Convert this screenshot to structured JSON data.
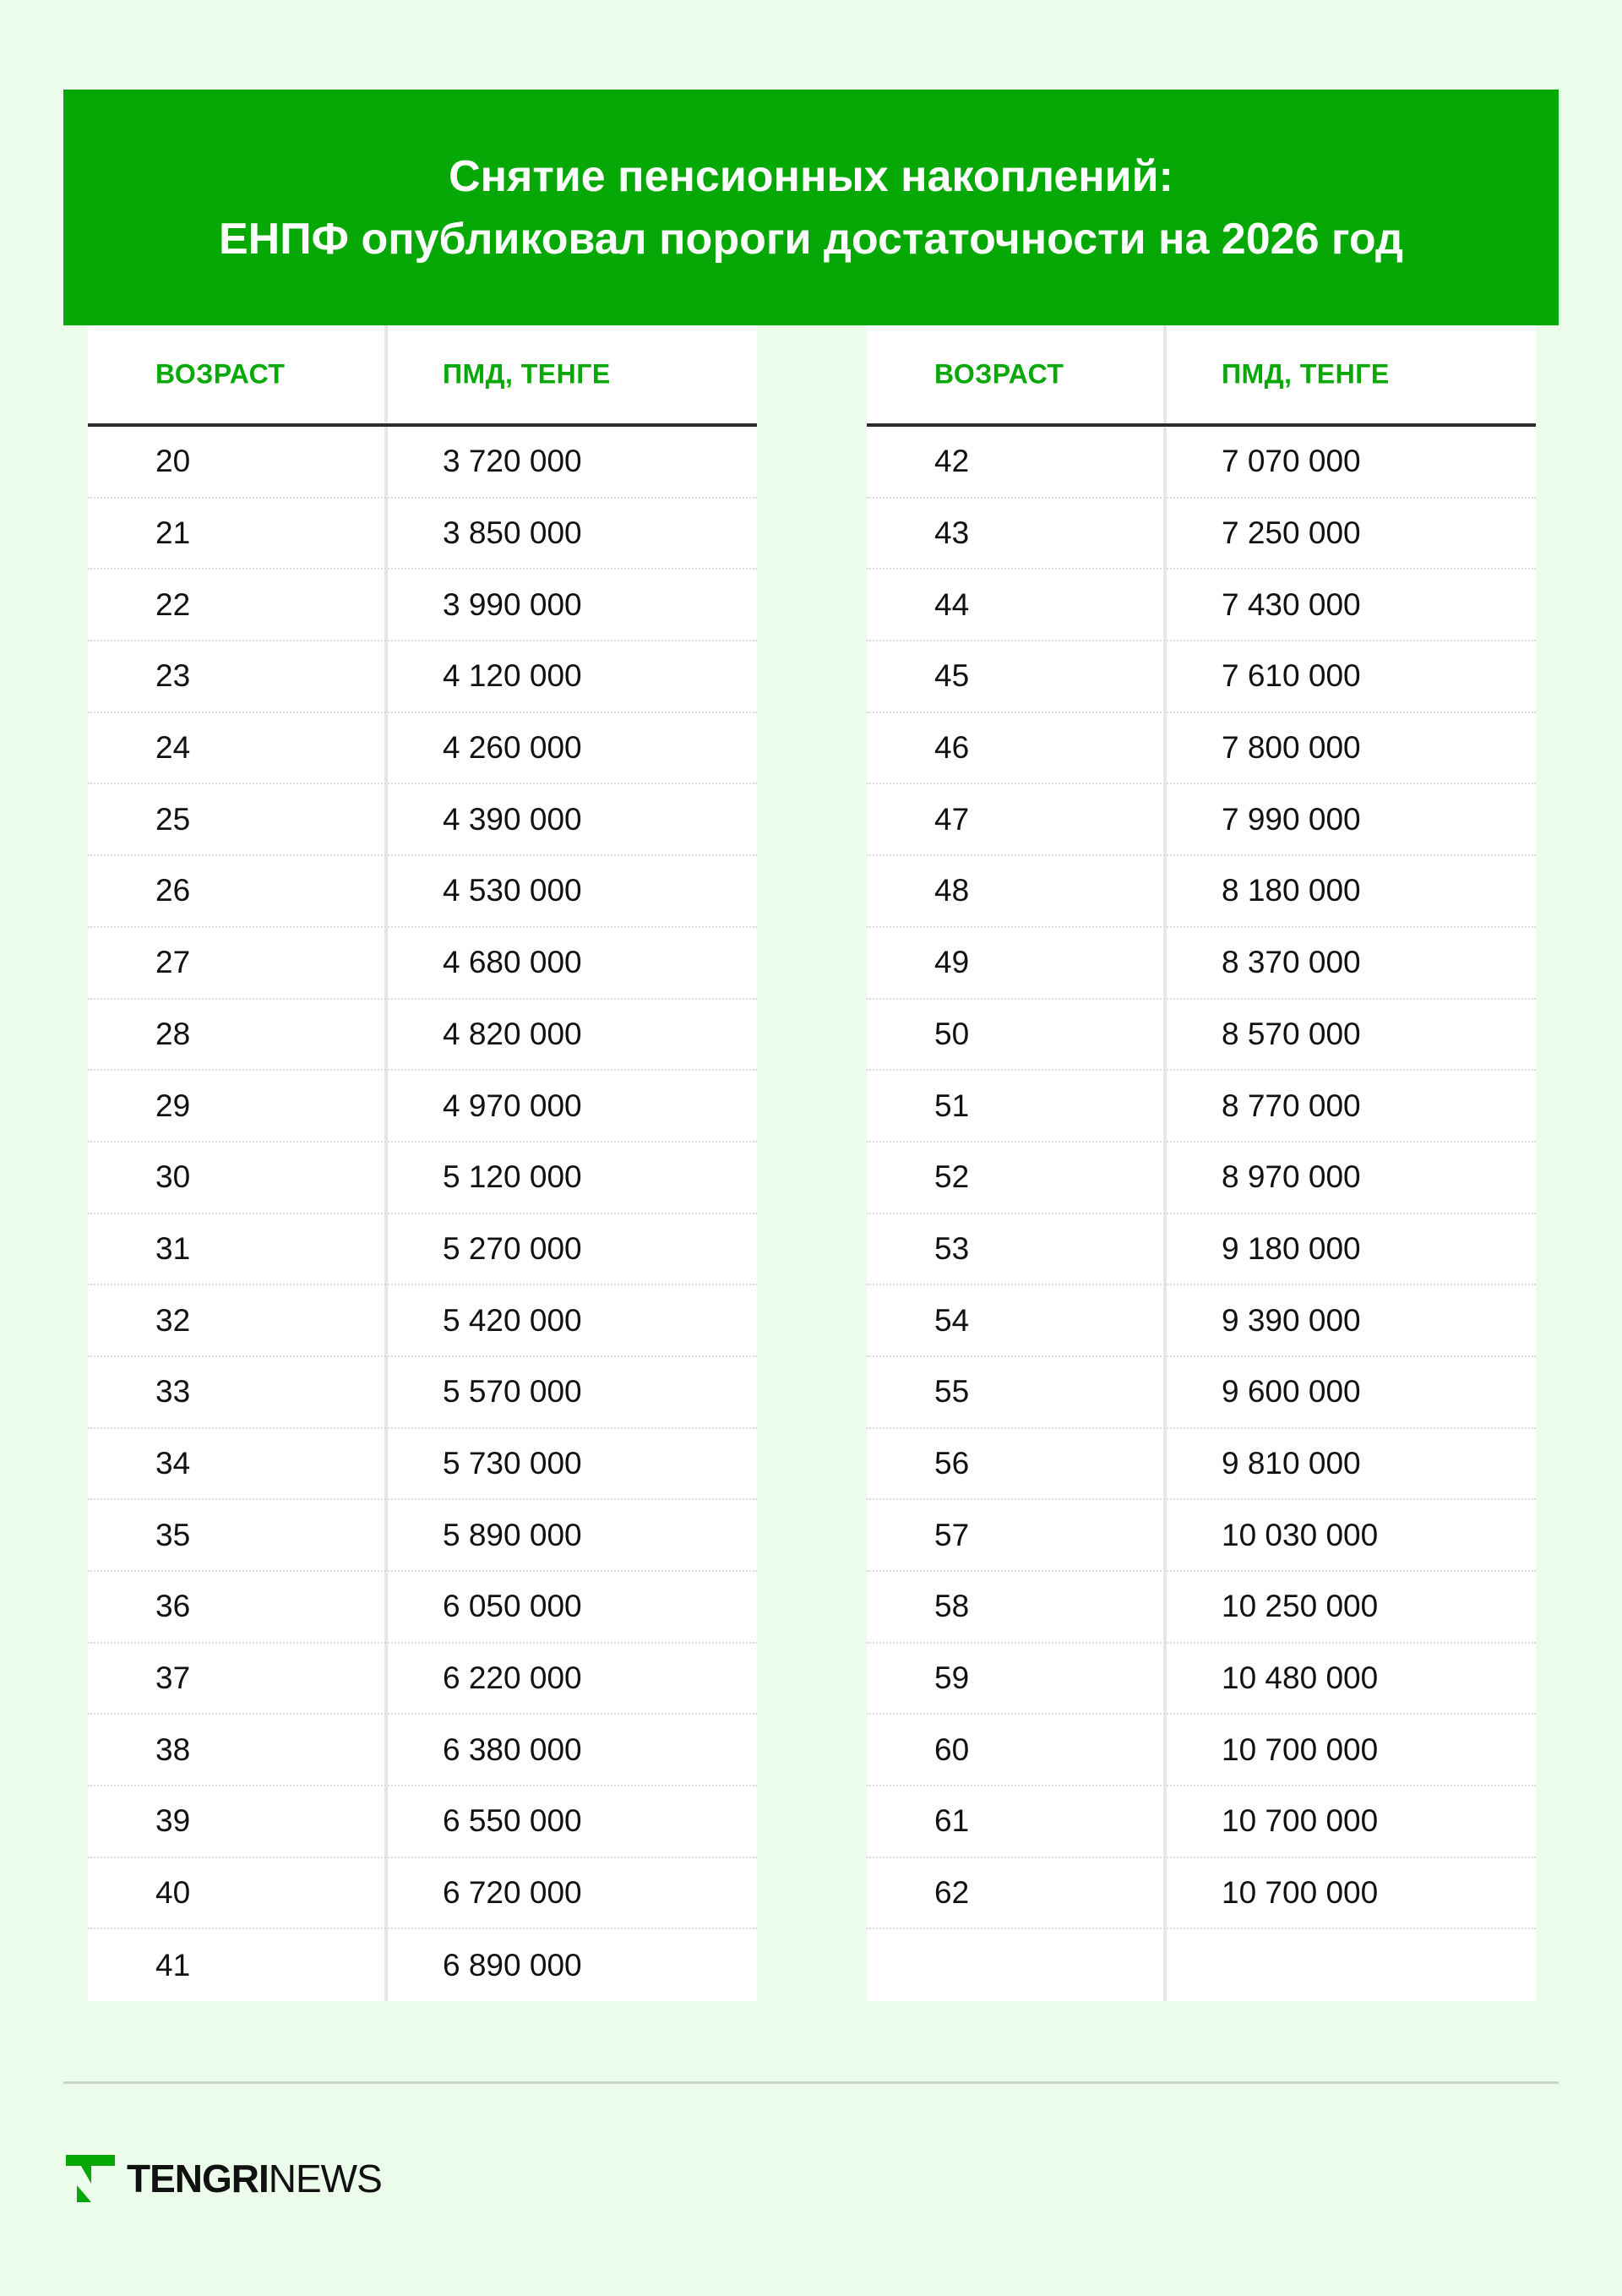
{
  "title": {
    "line1": "Снятие пенсионных накоплений:",
    "line2": "ЕНПФ опубликовал пороги достаточности на 2026 год"
  },
  "columns": {
    "age": "ВОЗРАСТ",
    "amount": "ПМД, ТЕНГЕ"
  },
  "colors": {
    "brand_green": "#05a805",
    "background": "#ebfcea",
    "header_text": "#08a808"
  },
  "left_table": [
    {
      "age": "20",
      "amount": "3 720 000"
    },
    {
      "age": "21",
      "amount": "3 850 000"
    },
    {
      "age": "22",
      "amount": "3 990 000"
    },
    {
      "age": "23",
      "amount": "4 120 000"
    },
    {
      "age": "24",
      "amount": "4 260 000"
    },
    {
      "age": "25",
      "amount": "4 390 000"
    },
    {
      "age": "26",
      "amount": "4 530 000"
    },
    {
      "age": "27",
      "amount": "4 680 000"
    },
    {
      "age": "28",
      "amount": "4 820 000"
    },
    {
      "age": "29",
      "amount": "4 970 000"
    },
    {
      "age": "30",
      "amount": "5 120 000"
    },
    {
      "age": "31",
      "amount": "5 270 000"
    },
    {
      "age": "32",
      "amount": "5 420 000"
    },
    {
      "age": "33",
      "amount": "5 570 000"
    },
    {
      "age": "34",
      "amount": "5 730 000"
    },
    {
      "age": "35",
      "amount": "5 890 000"
    },
    {
      "age": "36",
      "amount": "6 050 000"
    },
    {
      "age": "37",
      "amount": "6 220 000"
    },
    {
      "age": "38",
      "amount": "6 380 000"
    },
    {
      "age": "39",
      "amount": "6 550 000"
    },
    {
      "age": "40",
      "amount": "6 720 000"
    },
    {
      "age": "41",
      "amount": "6 890 000"
    }
  ],
  "right_table": [
    {
      "age": "42",
      "amount": "7 070 000"
    },
    {
      "age": "43",
      "amount": "7 250 000"
    },
    {
      "age": "44",
      "amount": "7 430 000"
    },
    {
      "age": "45",
      "amount": "7 610 000"
    },
    {
      "age": "46",
      "amount": "7 800 000"
    },
    {
      "age": "47",
      "amount": "7 990 000"
    },
    {
      "age": "48",
      "amount": "8 180 000"
    },
    {
      "age": "49",
      "amount": "8 370 000"
    },
    {
      "age": "50",
      "amount": "8 570 000"
    },
    {
      "age": "51",
      "amount": "8 770 000"
    },
    {
      "age": "52",
      "amount": "8 970 000"
    },
    {
      "age": "53",
      "amount": "9 180 000"
    },
    {
      "age": "54",
      "amount": "9 390 000"
    },
    {
      "age": "55",
      "amount": "9 600 000"
    },
    {
      "age": "56",
      "amount": "9 810 000"
    },
    {
      "age": "57",
      "amount": "10 030 000"
    },
    {
      "age": "58",
      "amount": "10 250 000"
    },
    {
      "age": "59",
      "amount": "10 480 000"
    },
    {
      "age": "60",
      "amount": "10 700 000"
    },
    {
      "age": "61",
      "amount": "10 700 000"
    },
    {
      "age": "62",
      "amount": "10 700 000"
    }
  ],
  "logo": {
    "bold": "TENGRI",
    "light": "NEWS",
    "icon": "tengri-t-logo-icon"
  }
}
